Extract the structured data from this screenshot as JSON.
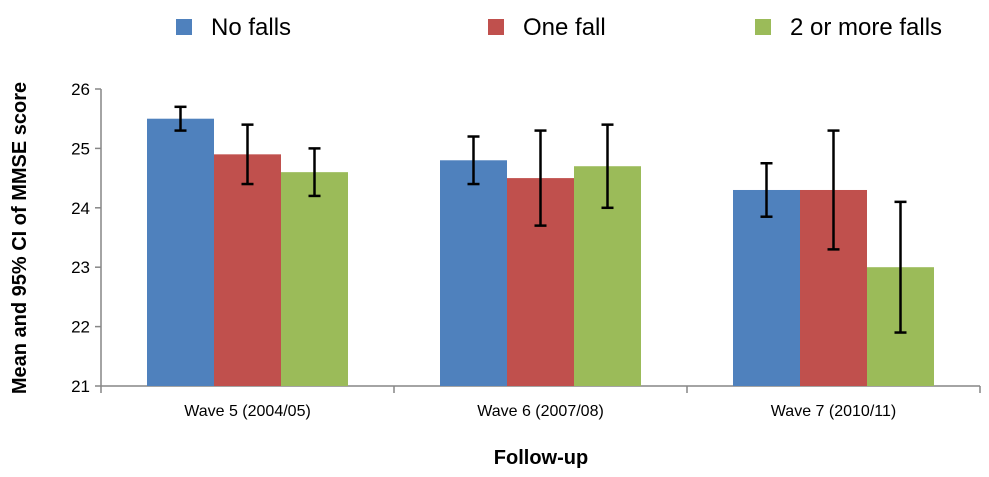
{
  "chart_data": {
    "type": "bar",
    "categories": [
      "Wave 5 (2004/05)",
      "Wave 6 (2007/08)",
      "Wave 7 (2010/11)"
    ],
    "series": [
      {
        "name": "No falls",
        "color": "#4f81bd",
        "values": [
          25.5,
          24.8,
          24.3
        ],
        "ci_low": [
          25.3,
          24.4,
          23.85
        ],
        "ci_high": [
          25.7,
          25.2,
          24.75
        ]
      },
      {
        "name": "One fall",
        "color": "#c0504d",
        "values": [
          24.9,
          24.5,
          24.3
        ],
        "ci_low": [
          24.4,
          23.7,
          23.3
        ],
        "ci_high": [
          25.4,
          25.3,
          25.3
        ]
      },
      {
        "name": "2 or more falls",
        "color": "#9bbb59",
        "values": [
          24.6,
          24.7,
          23.0
        ],
        "ci_low": [
          24.2,
          24.0,
          21.9
        ],
        "ci_high": [
          25.0,
          25.4,
          24.1
        ]
      }
    ],
    "xlabel": "Follow-up",
    "ylabel": "Mean and 95% CI of MMSE score",
    "ylim": [
      21,
      26
    ],
    "yticks": [
      21,
      22,
      23,
      24,
      25,
      26
    ],
    "grid": false,
    "legend_position": "top"
  }
}
